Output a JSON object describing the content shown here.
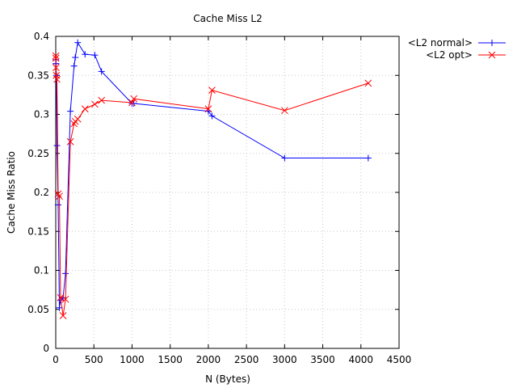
{
  "chart_data": {
    "type": "line",
    "title": "Cache Miss L2",
    "xlabel": "N (Bytes)",
    "ylabel": "Cache Miss Ratio",
    "xlim": [
      0,
      4500
    ],
    "ylim": [
      0,
      0.4
    ],
    "xticks": [
      0,
      500,
      1000,
      1500,
      2000,
      2500,
      3000,
      3500,
      4000,
      4500
    ],
    "yticks": [
      0,
      0.05,
      0.1,
      0.15,
      0.2,
      0.25,
      0.3,
      0.35,
      0.4
    ],
    "xtick_labels": [
      "0",
      "500",
      "1000",
      "1500",
      "2000",
      "2500",
      "3000",
      "3500",
      "4000",
      "4500"
    ],
    "ytick_labels": [
      "0",
      "0.05",
      "0.1",
      "0.15",
      "0.2",
      "0.25",
      "0.3",
      "0.35",
      "0.4"
    ],
    "grid": true,
    "legend_position": "outside-top-right",
    "series": [
      {
        "name": "<L2 normal>",
        "color": "#0000ff",
        "marker": "plus",
        "x": [
          1,
          2,
          4,
          8,
          16,
          32,
          48,
          64,
          96,
          128,
          192,
          240,
          256,
          288,
          384,
          512,
          600,
          1000,
          1024,
          2000,
          2048,
          3000,
          4096
        ],
        "y": [
          0.37,
          0.365,
          0.365,
          0.35,
          0.26,
          0.184,
          0.052,
          0.062,
          0.065,
          0.096,
          0.304,
          0.362,
          0.373,
          0.392,
          0.377,
          0.376,
          0.355,
          0.314,
          0.314,
          0.304,
          0.298,
          0.244,
          0.244
        ]
      },
      {
        "name": "<L2 opt>",
        "color": "#ff0000",
        "marker": "cross",
        "x": [
          1,
          2,
          4,
          8,
          16,
          32,
          48,
          64,
          96,
          128,
          192,
          240,
          256,
          288,
          384,
          512,
          600,
          1000,
          1024,
          2000,
          2048,
          3000,
          4096
        ],
        "y": [
          0.375,
          0.372,
          0.36,
          0.35,
          0.345,
          0.198,
          0.195,
          0.065,
          0.042,
          0.063,
          0.265,
          0.288,
          0.291,
          0.294,
          0.307,
          0.313,
          0.318,
          0.315,
          0.32,
          0.307,
          0.331,
          0.305,
          0.34
        ]
      }
    ]
  }
}
